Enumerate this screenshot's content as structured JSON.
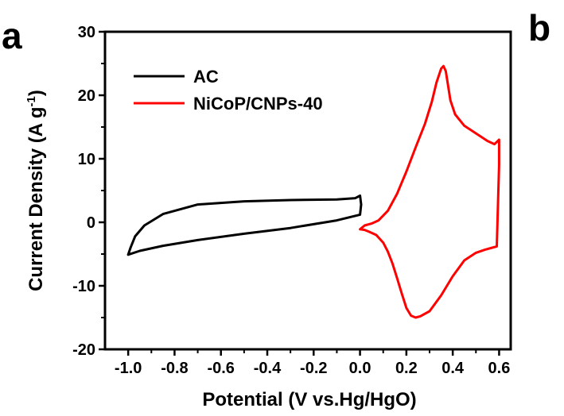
{
  "panels": {
    "left": "a",
    "right": "b"
  },
  "chart_data": {
    "type": "line",
    "title": "",
    "xlabel": "Potential (V vs.Hg/HgO)",
    "ylabel": "Current Density (A g",
    "ylabel_sup": "-1",
    "ylabel_tail": ")",
    "xlim": [
      -1.1,
      0.65
    ],
    "ylim": [
      -20,
      30
    ],
    "xticks": [
      -1.0,
      -0.8,
      -0.6,
      -0.4,
      -0.2,
      0.0,
      0.2,
      0.4,
      0.6
    ],
    "xtick_labels": [
      "-1.0",
      "-0.8",
      "-0.6",
      "-0.4",
      "-0.2",
      "0.0",
      "0.2",
      "0.4",
      "0.6"
    ],
    "yticks": [
      -20,
      -10,
      0,
      10,
      20,
      30
    ],
    "ytick_labels": [
      "-20",
      "-10",
      "0",
      "10",
      "20",
      "30"
    ],
    "grid": false,
    "legend_position": "top-left",
    "series": [
      {
        "name": "AC",
        "color": "#000000",
        "x": [
          -1.0,
          -0.99,
          -0.97,
          -0.93,
          -0.85,
          -0.7,
          -0.5,
          -0.3,
          -0.1,
          -0.02,
          0.0,
          0.005,
          0.0,
          -0.1,
          -0.3,
          -0.5,
          -0.7,
          -0.85,
          -0.95,
          -1.0
        ],
        "y": [
          -5.1,
          -4.0,
          -2.2,
          -0.5,
          1.3,
          2.8,
          3.3,
          3.5,
          3.6,
          3.8,
          4.2,
          2.8,
          1.2,
          0.3,
          -0.9,
          -1.8,
          -2.8,
          -3.7,
          -4.5,
          -5.1
        ]
      },
      {
        "name": "NiCoP/CNPs-40",
        "color": "#ff0000",
        "x": [
          0.0,
          0.02,
          0.05,
          0.08,
          0.12,
          0.16,
          0.2,
          0.24,
          0.28,
          0.31,
          0.33,
          0.35,
          0.36,
          0.37,
          0.38,
          0.39,
          0.41,
          0.45,
          0.5,
          0.55,
          0.58,
          0.6,
          0.6,
          0.59,
          0.57,
          0.54,
          0.5,
          0.45,
          0.4,
          0.35,
          0.3,
          0.26,
          0.24,
          0.22,
          0.2,
          0.18,
          0.16,
          0.14,
          0.12,
          0.1,
          0.07,
          0.04,
          0.02,
          0.0
        ],
        "y": [
          -1.1,
          -0.5,
          -0.2,
          0.3,
          1.8,
          4.5,
          8.0,
          11.8,
          15.5,
          19.0,
          22.0,
          24.2,
          24.6,
          23.8,
          21.5,
          19.2,
          17.0,
          15.2,
          14.0,
          12.8,
          12.3,
          13.0,
          9.0,
          -3.8,
          -4.0,
          -4.3,
          -4.8,
          -6.0,
          -8.5,
          -11.5,
          -14.0,
          -14.8,
          -15.0,
          -14.7,
          -13.5,
          -11.2,
          -8.8,
          -6.5,
          -4.6,
          -3.2,
          -2.0,
          -1.5,
          -1.2,
          -1.1
        ]
      }
    ]
  }
}
